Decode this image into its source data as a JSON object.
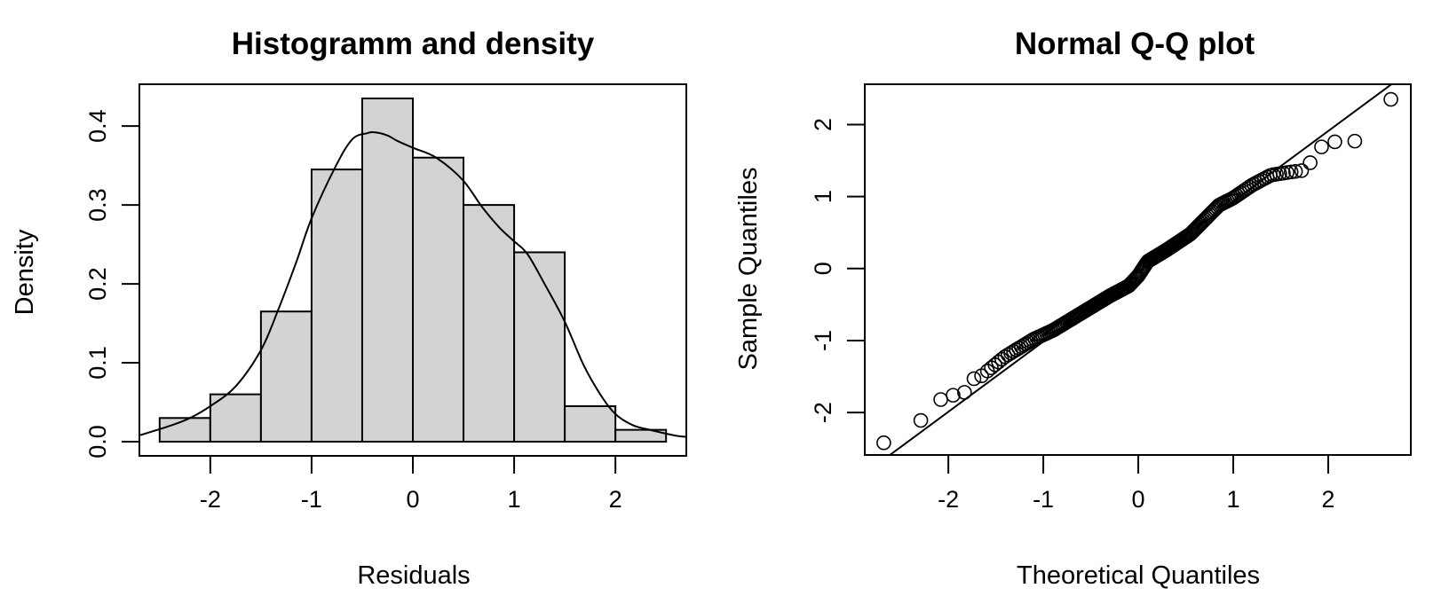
{
  "chart_data": [
    {
      "type": "bar",
      "subtype": "histogram-with-density",
      "title": "Histogramm and density",
      "xlabel": "Residuals",
      "ylabel": "Density",
      "xlim": [
        -2.7,
        2.7
      ],
      "ylim": [
        -0.018,
        0.453
      ],
      "xticks": [
        -2,
        -1,
        0,
        1,
        2
      ],
      "xtick_labels": [
        "-2",
        "-1",
        "0",
        "1",
        "2"
      ],
      "yticks": [
        0.0,
        0.1,
        0.2,
        0.3,
        0.4
      ],
      "ytick_labels": [
        "0.0",
        "0.1",
        "0.2",
        "0.3",
        "0.4"
      ],
      "bins": [
        {
          "from": -2.5,
          "to": -2.0,
          "density": 0.03
        },
        {
          "from": -2.0,
          "to": -1.5,
          "density": 0.06
        },
        {
          "from": -1.5,
          "to": -1.0,
          "density": 0.165
        },
        {
          "from": -1.0,
          "to": -0.5,
          "density": 0.345
        },
        {
          "from": -0.5,
          "to": 0.0,
          "density": 0.435
        },
        {
          "from": 0.0,
          "to": 0.5,
          "density": 0.36
        },
        {
          "from": 0.5,
          "to": 1.0,
          "density": 0.3
        },
        {
          "from": 1.0,
          "to": 1.5,
          "density": 0.24
        },
        {
          "from": 1.5,
          "to": 2.0,
          "density": 0.045
        },
        {
          "from": 2.0,
          "to": 2.5,
          "density": 0.015
        }
      ],
      "bar_color": "#d3d3d3",
      "density_curve": {
        "x": [
          -2.7,
          -2.4,
          -2.2,
          -2.0,
          -1.75,
          -1.5,
          -1.33,
          -1.15,
          -1.0,
          -0.77,
          -0.6,
          -0.45,
          -0.37,
          -0.25,
          -0.15,
          0.01,
          0.23,
          0.49,
          0.68,
          0.85,
          0.99,
          1.13,
          1.3,
          1.5,
          1.69,
          1.86,
          2.0,
          2.17,
          2.34,
          2.58,
          2.7
        ],
        "y": [
          0.008,
          0.02,
          0.03,
          0.045,
          0.07,
          0.116,
          0.167,
          0.228,
          0.283,
          0.347,
          0.383,
          0.391,
          0.392,
          0.388,
          0.381,
          0.372,
          0.36,
          0.332,
          0.298,
          0.272,
          0.255,
          0.238,
          0.2,
          0.152,
          0.096,
          0.058,
          0.035,
          0.021,
          0.015,
          0.008,
          0.006
        ]
      }
    },
    {
      "type": "scatter",
      "subtype": "qq-plot",
      "title": "Normal Q-Q plot",
      "xlabel": "Theoretical Quantiles",
      "ylabel": "Sample Quantiles",
      "xlim": [
        -2.88,
        2.87
      ],
      "ylim": [
        -2.59,
        2.56
      ],
      "xticks": [
        -2,
        -1,
        0,
        1,
        2
      ],
      "xtick_labels": [
        "-2",
        "-1",
        "0",
        "1",
        "2"
      ],
      "yticks": [
        -2,
        -1,
        0,
        1,
        2
      ],
      "ytick_labels": [
        "-2",
        "-1",
        "0",
        "1",
        "2"
      ],
      "n_points": 200,
      "reference_line": {
        "intercept": -0.04,
        "slope": 0.975
      },
      "tail_points": [
        {
          "x": -2.68,
          "y": -2.42
        },
        {
          "x": -2.29,
          "y": -2.11
        },
        {
          "x": -2.08,
          "y": -1.82
        },
        {
          "x": -1.95,
          "y": -1.76
        },
        {
          "x": -1.83,
          "y": -1.72
        },
        {
          "x": -1.73,
          "y": -1.53
        },
        {
          "x": -1.65,
          "y": -1.49
        },
        {
          "x": 1.72,
          "y": 1.36
        },
        {
          "x": 1.81,
          "y": 1.47
        },
        {
          "x": 1.93,
          "y": 1.69
        },
        {
          "x": 2.07,
          "y": 1.76
        },
        {
          "x": 2.28,
          "y": 1.77
        },
        {
          "x": 2.66,
          "y": 2.35
        }
      ],
      "deviation_profile": {
        "x": [
          -1.65,
          -1.4,
          -1.1,
          -0.9,
          -0.6,
          -0.3,
          -0.1,
          0.0,
          0.1,
          0.3,
          0.55,
          0.7,
          0.85,
          1.0,
          1.2,
          1.4,
          1.6,
          1.72
        ],
        "y": [
          -1.49,
          -1.22,
          -0.98,
          -0.86,
          -0.62,
          -0.38,
          -0.24,
          -0.1,
          0.1,
          0.26,
          0.48,
          0.68,
          0.88,
          0.98,
          1.16,
          1.3,
          1.34,
          1.36
        ]
      }
    }
  ]
}
